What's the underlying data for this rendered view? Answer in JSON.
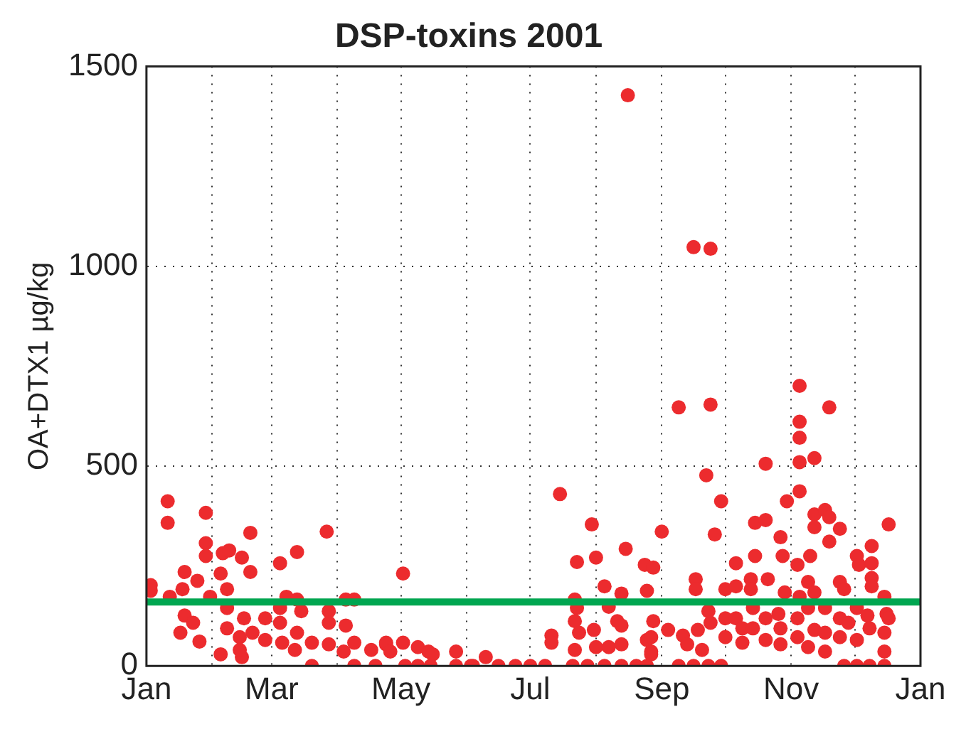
{
  "chart_data": {
    "type": "scatter",
    "title": "DSP-toxins 2001",
    "ylabel": "OA+DTX1 µg/kg",
    "xlim": [
      "2001-01",
      "2002-01"
    ],
    "xticks": [
      {
        "value": "2001-01",
        "label": "Jan"
      },
      {
        "value": "2001-02",
        "label": null
      },
      {
        "value": "2001-03",
        "label": "Mar"
      },
      {
        "value": "2001-04",
        "label": null
      },
      {
        "value": "2001-05",
        "label": "May"
      },
      {
        "value": "2001-06",
        "label": null
      },
      {
        "value": "2001-07",
        "label": "Jul"
      },
      {
        "value": "2001-08",
        "label": null
      },
      {
        "value": "2001-09",
        "label": "Sep"
      },
      {
        "value": "2001-10",
        "label": null
      },
      {
        "value": "2001-11",
        "label": "Nov"
      },
      {
        "value": "2001-12",
        "label": null
      },
      {
        "value": "2002-01",
        "label": "Jan"
      }
    ],
    "ylim": [
      0,
      1500
    ],
    "yticks": [
      0,
      500,
      1000,
      1500
    ],
    "grid": true,
    "marker": "circle",
    "legend": false,
    "ref_lines": [
      {
        "axis": "y",
        "value": 160,
        "color": "#00a651"
      }
    ],
    "series": [
      {
        "color": "#ec2b2e",
        "x": [
          "2001-01-11",
          "2001-01-11",
          "2001-01-29",
          "2001-01-03",
          "2001-01-03",
          "2001-02-19",
          "2001-03-27",
          "2001-01-29",
          "2001-01-29",
          "2001-02-06",
          "2001-02-09",
          "2001-02-15",
          "2001-03-13",
          "2001-03-05",
          "2001-02-19",
          "2001-01-19",
          "2001-02-05",
          "2001-01-25",
          "2001-01-18",
          "2001-02-08",
          "2001-01-31",
          "2001-01-12",
          "2001-03-08",
          "2001-03-13",
          "2001-04-05",
          "2001-04-09",
          "2001-01-19",
          "2001-01-23",
          "2001-02-08",
          "2001-02-08",
          "2001-01-17",
          "2001-01-26",
          "2001-02-05",
          "2001-02-15",
          "2001-02-16",
          "2001-02-20",
          "2001-02-26",
          "2001-02-26",
          "2001-03-05",
          "2001-03-05",
          "2001-03-06",
          "2001-03-15",
          "2001-03-13",
          "2001-03-12",
          "2001-03-20",
          "2001-03-20",
          "2001-03-28",
          "2001-03-28",
          "2001-03-28",
          "2001-04-05",
          "2001-04-04",
          "2001-04-09",
          "2001-04-09",
          "2001-04-17",
          "2001-04-19",
          "2001-04-24",
          "2001-05-02",
          "2001-02-14",
          "2001-02-14",
          "2001-07-15",
          "2001-07-30",
          "2001-07-23",
          "2001-08-01",
          "2001-08-15",
          "2001-08-05",
          "2001-08-24",
          "2001-08-25",
          "2001-08-13",
          "2001-08-07",
          "2001-07-22",
          "2001-07-23",
          "2001-07-22",
          "2001-08-11",
          "2001-08-13",
          "2001-07-31",
          "2001-07-24",
          "2001-07-11",
          "2001-07-11",
          "2001-07-22",
          "2001-08-01",
          "2001-08-07",
          "2001-08-13",
          "2001-08-25",
          "2001-08-27",
          "2001-05-02",
          "2001-04-24",
          "2001-04-26",
          "2001-05-09",
          "2001-05-14",
          "2001-05-16",
          "2001-05-27",
          "2001-06-10",
          "2001-05-03",
          "2001-05-09",
          "2001-05-15",
          "2001-05-27",
          "2001-06-04",
          "2001-06-16",
          "2001-06-24",
          "2001-07-01",
          "2001-07-08",
          "2001-07-21",
          "2001-07-28",
          "2001-08-05",
          "2001-08-13",
          "2001-08-20",
          "2001-08-25",
          "2001-06-03",
          "2001-09-09",
          "2001-09-24",
          "2001-11-05",
          "2001-11-19",
          "2001-11-05",
          "2001-11-05",
          "2001-11-05",
          "2001-11-12",
          "2001-10-20",
          "2001-09-22",
          "2001-09-29",
          "2001-11-05",
          "2001-10-30",
          "2001-10-15",
          "2001-10-20",
          "2001-11-12",
          "2001-11-17",
          "2001-11-19",
          "2001-11-12",
          "2001-11-24",
          "2001-11-19",
          "2001-12-17",
          "2001-09-01",
          "2001-09-26",
          "2001-10-27",
          "2001-12-09",
          "2001-10-15",
          "2001-10-28",
          "2001-11-10",
          "2001-12-02",
          "2001-12-03",
          "2001-12-09",
          "2001-11-04",
          "2001-10-06",
          "2001-08-28",
          "2001-09-17",
          "2001-09-17",
          "2001-10-13",
          "2001-10-21",
          "2001-11-24",
          "2001-12-09",
          "2001-12-09",
          "2001-11-09",
          "2001-10-01",
          "2001-10-06",
          "2001-10-13",
          "2001-10-29",
          "2001-11-12",
          "2001-11-26",
          "2001-12-15",
          "2001-12-16",
          "2001-12-17",
          "2001-11-05",
          "2001-08-28",
          "2001-09-04",
          "2001-09-11",
          "2001-09-18",
          "2001-09-23",
          "2001-09-24",
          "2001-10-01",
          "2001-10-01",
          "2001-10-06",
          "2001-10-09",
          "2001-10-09",
          "2001-10-14",
          "2001-10-14",
          "2001-10-20",
          "2001-10-20",
          "2001-10-26",
          "2001-10-27",
          "2001-10-27",
          "2001-11-04",
          "2001-11-04",
          "2001-11-09",
          "2001-11-09",
          "2001-11-12",
          "2001-11-17",
          "2001-11-17",
          "2001-11-17",
          "2001-11-24",
          "2001-11-24",
          "2001-11-28",
          "2001-12-02",
          "2001-12-02",
          "2001-12-07",
          "2001-12-08",
          "2001-12-15",
          "2001-12-15",
          "2001-08-27",
          "2001-08-27",
          "2001-09-13",
          "2001-09-20",
          "2001-09-09",
          "2001-09-16",
          "2001-09-23",
          "2001-09-29",
          "2001-11-26",
          "2001-12-02",
          "2001-12-08",
          "2001-12-15",
          "2001-08-16",
          "2001-09-16",
          "2001-09-24"
        ],
        "values": [
          412,
          358,
          383,
          202,
          188,
          333,
          336,
          307,
          275,
          282,
          289,
          271,
          285,
          257,
          235,
          235,
          231,
          213,
          192,
          192,
          173,
          173,
          173,
          166,
          166,
          166,
          126,
          108,
          145,
          94,
          83,
          61,
          29,
          22,
          119,
          83,
          119,
          65,
          145,
          108,
          58,
          137,
          83,
          40,
          58,
          0,
          137,
          108,
          54,
          101,
          36,
          58,
          0,
          40,
          0,
          54,
          231,
          72,
          40,
          430,
          354,
          260,
          271,
          293,
          199,
          253,
          188,
          181,
          148,
          166,
          145,
          112,
          112,
          101,
          90,
          83,
          76,
          58,
          40,
          47,
          47,
          54,
          65,
          36,
          58,
          58,
          36,
          47,
          36,
          29,
          36,
          22,
          0,
          0,
          0,
          0,
          0,
          0,
          0,
          0,
          0,
          0,
          0,
          0,
          0,
          0,
          0,
          0,
          647,
          654,
          701,
          647,
          611,
          571,
          510,
          520,
          506,
          477,
          412,
          437,
          412,
          358,
          365,
          379,
          390,
          372,
          347,
          343,
          311,
          354,
          336,
          329,
          322,
          300,
          275,
          275,
          275,
          275,
          253,
          257,
          253,
          257,
          246,
          217,
          192,
          217,
          217,
          210,
          220,
          199,
          210,
          192,
          199,
          192,
          184,
          184,
          192,
          173,
          130,
          119,
          173,
          112,
          90,
          76,
          90,
          137,
          108,
          119,
          72,
          119,
          94,
          58,
          145,
          94,
          119,
          65,
          130,
          94,
          54,
          119,
          72,
          145,
          47,
          90,
          145,
          83,
          36,
          119,
          72,
          108,
          145,
          65,
          126,
          94,
          83,
          36,
          72,
          29,
          54,
          40,
          0,
          0,
          0,
          0,
          0,
          0,
          0,
          0,
          1428,
          1048,
          1044
        ]
      }
    ]
  }
}
